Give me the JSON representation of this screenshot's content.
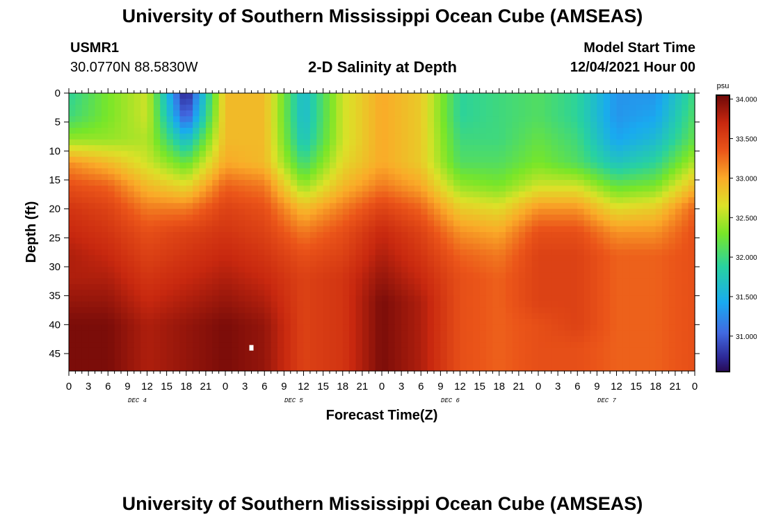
{
  "page": {
    "title": "University of Southern Mississippi Ocean Cube (AMSEAS)",
    "station_id": "USMR1",
    "coords": "30.0770N  88.5830W",
    "subtitle": "2-D Salinity at Depth",
    "model_start_label": "Model Start Time",
    "model_start_value": "12/04/2021 Hour 00",
    "footer_title": "University of Southern Mississippi Ocean Cube (AMSEAS)"
  },
  "chart_data": {
    "type": "heatmap",
    "title": "2-D Salinity at Depth",
    "xlabel": "Forecast Time(Z)",
    "ylabel": "Depth (ft)",
    "x_range_hours": [
      0,
      96
    ],
    "x_tick_step_hours": 3,
    "x_ticks": [
      "0",
      "3",
      "6",
      "9",
      "12",
      "15",
      "18",
      "21",
      "0",
      "3",
      "6",
      "9",
      "12",
      "15",
      "18",
      "21",
      "0",
      "3",
      "6",
      "9",
      "12",
      "15",
      "18",
      "21",
      "0",
      "3",
      "6",
      "9",
      "12",
      "15",
      "18",
      "21",
      "0"
    ],
    "x_day_labels": [
      {
        "label": "DEC 4",
        "hour": 10.5
      },
      {
        "label": "DEC 5",
        "hour": 34.5
      },
      {
        "label": "DEC 6",
        "hour": 58.5
      },
      {
        "label": "DEC 7",
        "hour": 82.5
      }
    ],
    "y_range_ft": [
      0,
      48
    ],
    "y_ticks": [
      0,
      5,
      10,
      15,
      20,
      25,
      30,
      35,
      40,
      45
    ],
    "colorbar": {
      "unit": "psu",
      "range": [
        30.55,
        34.05
      ],
      "ticks": [
        "31.000",
        "31.500",
        "32.000",
        "32.500",
        "33.000",
        "33.500",
        "34.000"
      ]
    },
    "depths_ft": [
      0,
      4,
      8,
      12,
      16,
      20,
      24,
      28,
      32,
      36,
      40,
      44,
      48
    ],
    "times_hours": [
      0,
      6,
      12,
      18,
      24,
      30,
      36,
      42,
      48,
      54,
      60,
      66,
      72,
      78,
      84,
      90,
      96
    ],
    "values_psu": [
      [
        31.9,
        32.3,
        32.6,
        30.6,
        32.9,
        32.9,
        31.6,
        32.6,
        33.0,
        32.8,
        31.9,
        32.0,
        32.1,
        31.9,
        31.3,
        31.3,
        32.0
      ],
      [
        32.0,
        32.3,
        32.6,
        30.9,
        32.9,
        32.9,
        31.6,
        32.6,
        33.0,
        32.8,
        31.9,
        32.0,
        32.1,
        31.9,
        31.3,
        31.4,
        32.1
      ],
      [
        32.4,
        32.4,
        32.5,
        31.6,
        32.9,
        32.9,
        31.7,
        32.6,
        33.0,
        32.8,
        32.0,
        32.0,
        32.2,
        32.0,
        31.4,
        31.6,
        32.2
      ],
      [
        33.1,
        32.9,
        32.6,
        32.2,
        33.0,
        32.9,
        32.0,
        32.7,
        33.0,
        32.8,
        32.1,
        32.1,
        32.3,
        32.1,
        31.7,
        31.9,
        32.5
      ],
      [
        33.4,
        33.3,
        32.9,
        32.7,
        33.3,
        33.2,
        32.4,
        32.9,
        33.2,
        33.0,
        32.4,
        32.3,
        32.6,
        32.6,
        32.2,
        32.3,
        32.9
      ],
      [
        33.6,
        33.5,
        33.2,
        33.2,
        33.5,
        33.4,
        32.9,
        33.2,
        33.5,
        33.3,
        32.8,
        32.7,
        33.1,
        33.1,
        32.7,
        32.8,
        33.3
      ],
      [
        33.7,
        33.6,
        33.4,
        33.5,
        33.6,
        33.5,
        33.2,
        33.4,
        33.7,
        33.5,
        33.1,
        33.0,
        33.4,
        33.4,
        33.1,
        33.1,
        33.4
      ],
      [
        33.8,
        33.7,
        33.5,
        33.6,
        33.7,
        33.6,
        33.4,
        33.5,
        33.8,
        33.6,
        33.3,
        33.2,
        33.5,
        33.5,
        33.3,
        33.3,
        33.4
      ],
      [
        33.8,
        33.8,
        33.6,
        33.7,
        33.8,
        33.7,
        33.5,
        33.6,
        33.9,
        33.7,
        33.4,
        33.3,
        33.5,
        33.5,
        33.3,
        33.3,
        33.4
      ],
      [
        33.9,
        33.9,
        33.7,
        33.8,
        33.9,
        33.8,
        33.5,
        33.6,
        34.0,
        33.8,
        33.4,
        33.3,
        33.5,
        33.5,
        33.3,
        33.3,
        33.4
      ],
      [
        34.0,
        34.0,
        33.8,
        33.9,
        34.0,
        33.9,
        33.5,
        33.6,
        34.0,
        33.8,
        33.4,
        33.3,
        33.4,
        33.5,
        33.3,
        33.3,
        33.4
      ],
      [
        34.0,
        34.0,
        33.8,
        33.9,
        34.0,
        33.9,
        33.5,
        33.6,
        34.0,
        33.8,
        33.4,
        33.3,
        33.4,
        33.4,
        33.3,
        33.3,
        33.4
      ],
      [
        34.0,
        34.0,
        33.8,
        33.9,
        34.0,
        33.9,
        33.5,
        33.6,
        34.0,
        33.8,
        33.4,
        33.3,
        33.4,
        33.4,
        33.3,
        33.3,
        33.4
      ]
    ],
    "marker": {
      "hour": 28.0,
      "depth_ft": 44
    }
  }
}
